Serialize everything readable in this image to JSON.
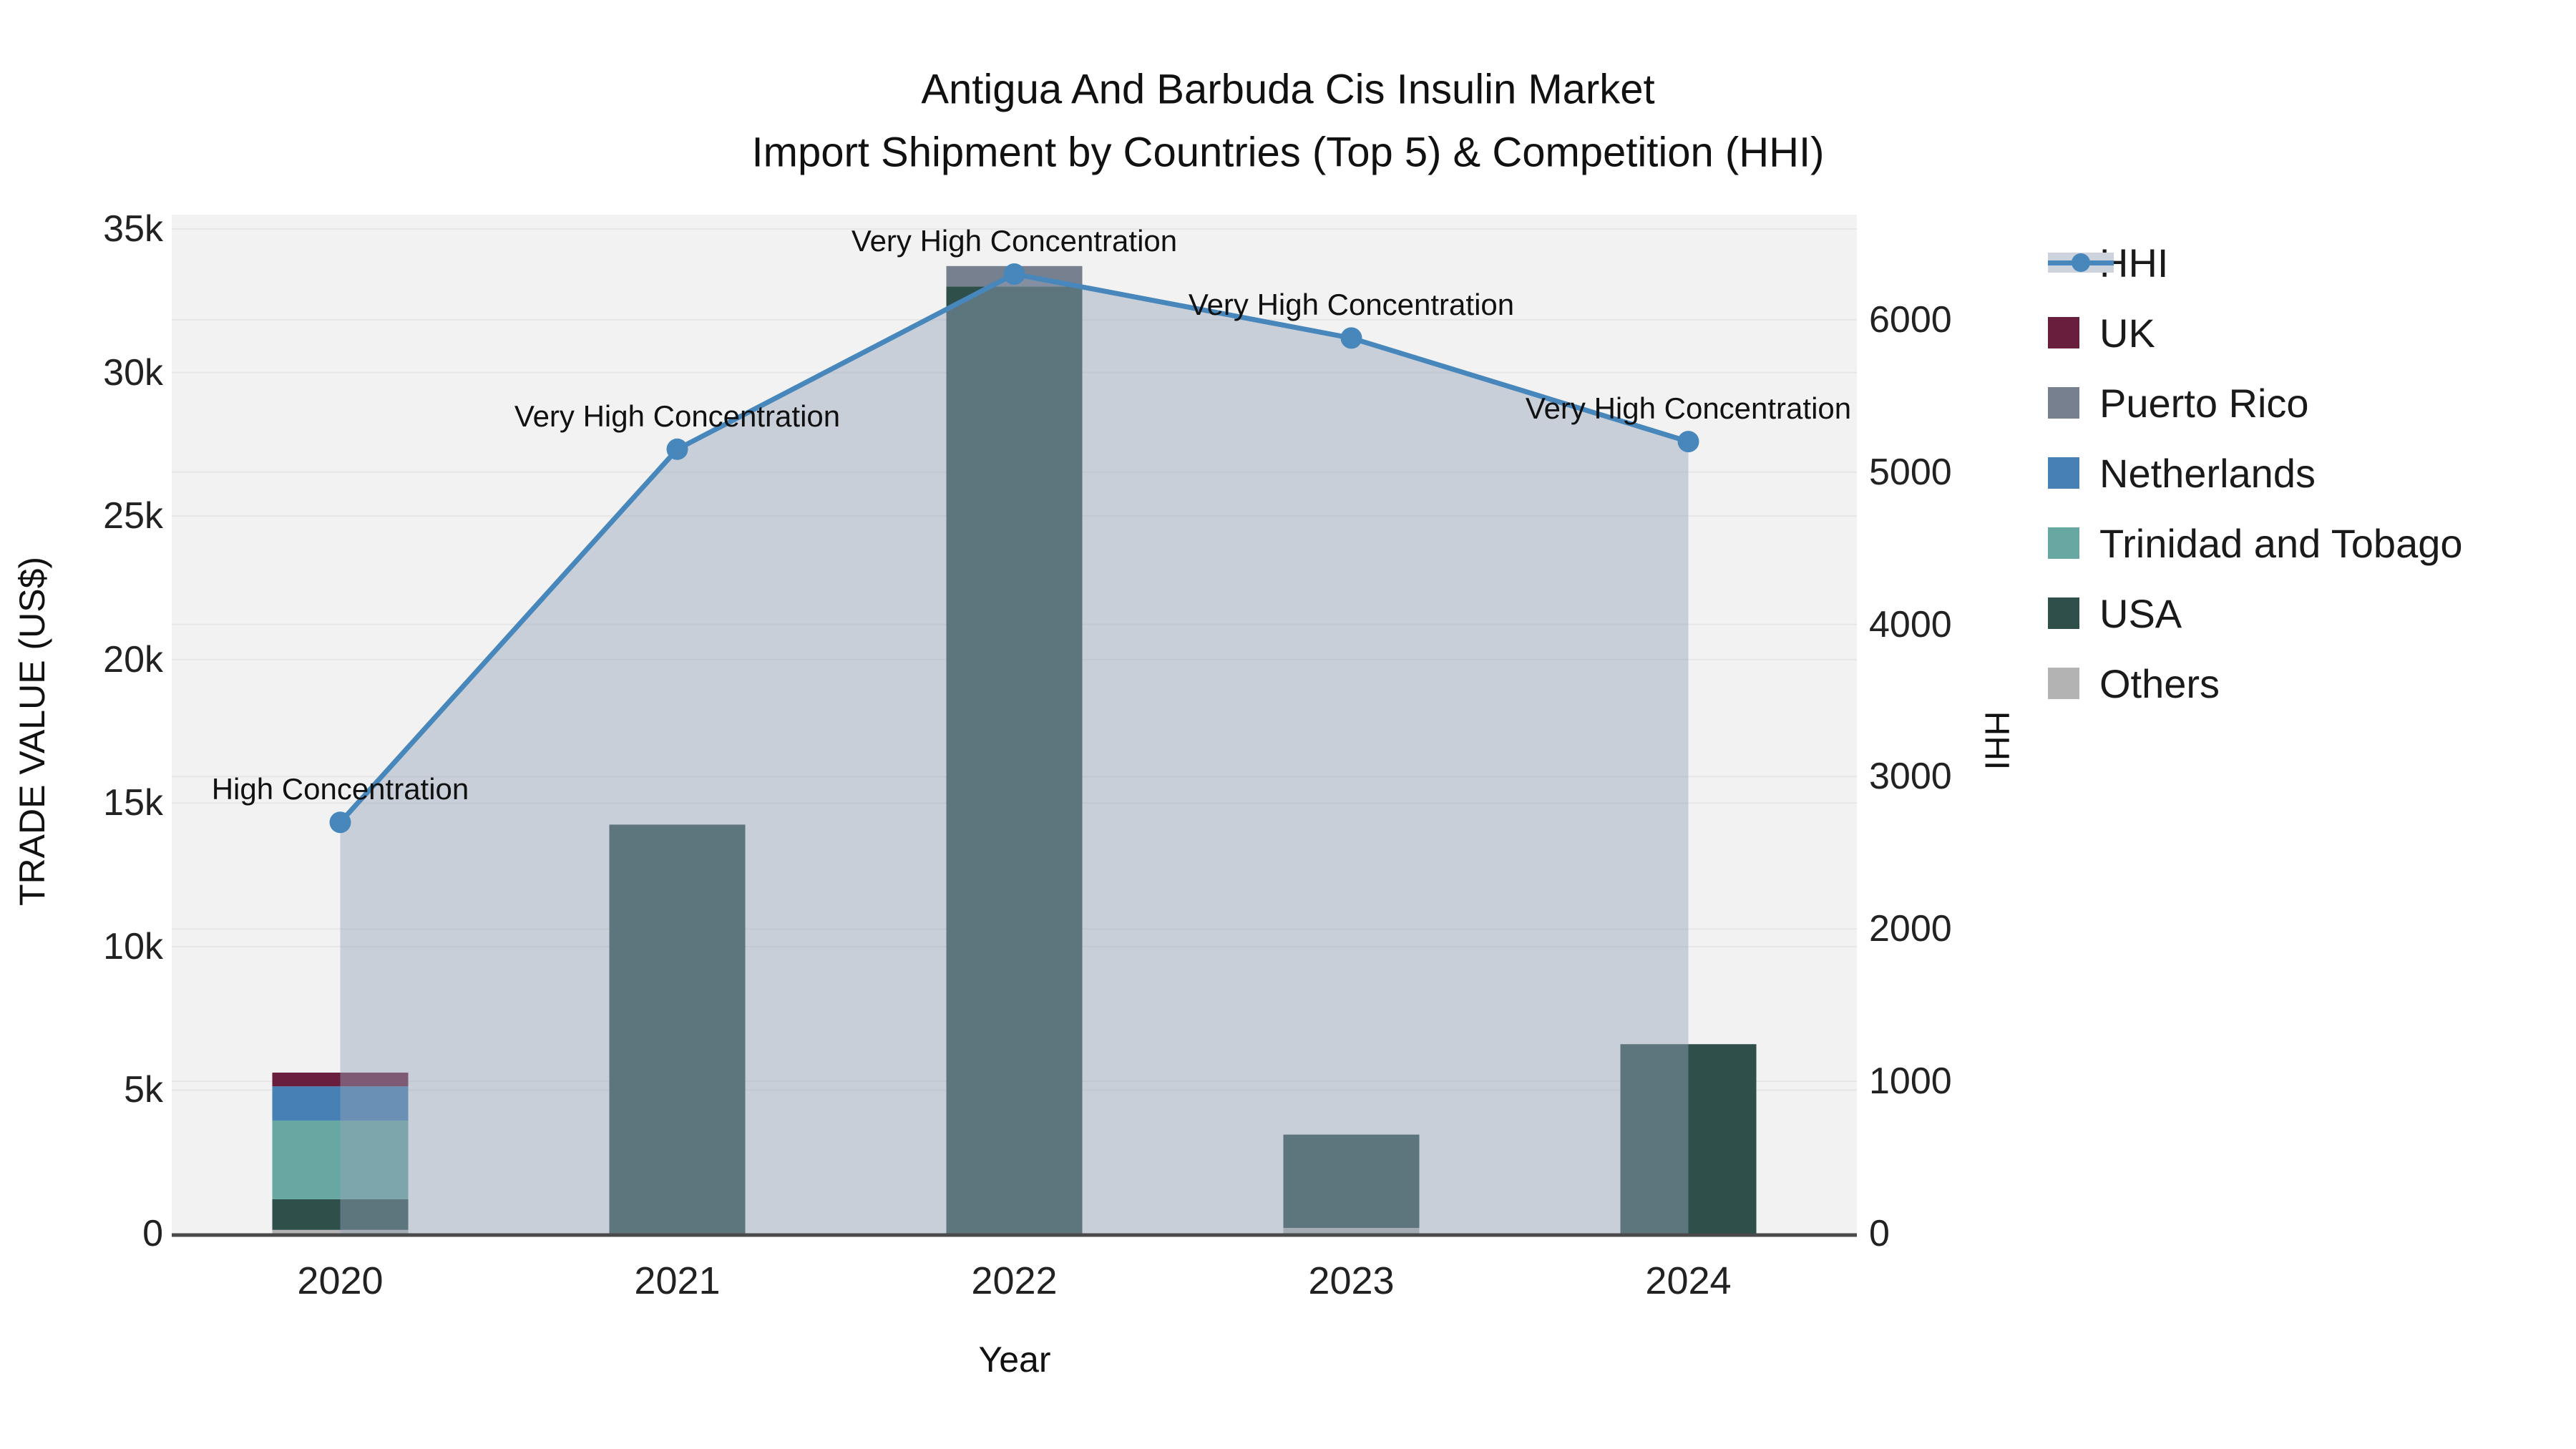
{
  "title": {
    "line1": "Antigua And Barbuda Cis Insulin Market",
    "line2": "Import Shipment by Countries (Top 5) & Competition (HHI)"
  },
  "chart_data": {
    "type": "bar+line",
    "categories": [
      "2020",
      "2021",
      "2022",
      "2023",
      "2024"
    ],
    "bar_unit": "US$",
    "bar_series": [
      {
        "name": "UK",
        "color": "#6A1E3E",
        "values": [
          480,
          0,
          0,
          0,
          0
        ]
      },
      {
        "name": "Puerto Rico",
        "color": "#76808F",
        "values": [
          0,
          0,
          710,
          0,
          0
        ]
      },
      {
        "name": "Netherlands",
        "color": "#4680B4",
        "values": [
          1190,
          0,
          0,
          0,
          0
        ]
      },
      {
        "name": "Trinidad and Tobago",
        "color": "#68A8A3",
        "values": [
          2740,
          0,
          0,
          0,
          0
        ]
      },
      {
        "name": "USA",
        "color": "#2F4F4B",
        "values": [
          1070,
          14250,
          33000,
          3250,
          6600
        ]
      },
      {
        "name": "Others",
        "color": "#B3B3B3",
        "values": [
          130,
          0,
          0,
          200,
          0
        ]
      }
    ],
    "stack_order_bottom_to_top": [
      "Others",
      "USA",
      "Trinidad and Tobago",
      "Netherlands",
      "UK",
      "Puerto Rico"
    ],
    "line_series": {
      "name": "HHI",
      "color": "#4787BB",
      "area_fill": "rgba(151,163,185,0.45)",
      "values": [
        2700,
        5150,
        6300,
        5880,
        5200
      ]
    },
    "annotations": [
      "High Concentration",
      "Very High Concentration",
      "Very High Concentration",
      "Very High Concentration",
      "Very High Concentration"
    ],
    "left_axis": {
      "title": "TRADE VALUE (US$)",
      "tick_labels": [
        "0",
        "5k",
        "10k",
        "15k",
        "20k",
        "25k",
        "30k",
        "35k"
      ],
      "tick_values": [
        0,
        5000,
        10000,
        15000,
        20000,
        25000,
        30000,
        35000
      ],
      "range": [
        0,
        35500
      ]
    },
    "right_axis": {
      "title": "HHI",
      "tick_labels": [
        "0",
        "1000",
        "2000",
        "3000",
        "4000",
        "5000",
        "6000"
      ],
      "tick_values": [
        0,
        1000,
        2000,
        3000,
        4000,
        5000,
        6000
      ],
      "range": [
        0,
        6690
      ]
    },
    "x_axis": {
      "title": "Year"
    },
    "legend": [
      {
        "label": "HHI",
        "type": "line",
        "color": "#4787BB"
      },
      {
        "label": "UK",
        "type": "square",
        "color": "#6A1E3E"
      },
      {
        "label": "Puerto Rico",
        "type": "square",
        "color": "#76808F"
      },
      {
        "label": "Netherlands",
        "type": "square",
        "color": "#4680B4"
      },
      {
        "label": "Trinidad and Tobago",
        "type": "square",
        "color": "#68A8A3"
      },
      {
        "label": "USA",
        "type": "square",
        "color": "#2F4F4B"
      },
      {
        "label": "Others",
        "type": "square",
        "color": "#B3B3B3"
      }
    ],
    "style": {
      "plot_bg": "#F2F2F2",
      "gridline": "#E6E6E6",
      "axis_line": "#4A4A4A"
    }
  }
}
